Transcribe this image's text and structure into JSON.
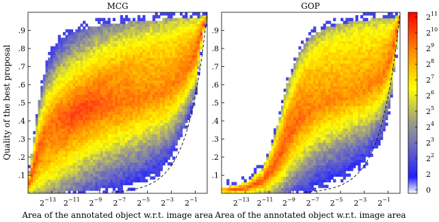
{
  "chart_data": [
    {
      "type": "heatmap",
      "title": "MCG",
      "xlabel": "Area of the annotated object w.r.t. image area",
      "ylabel": "Quality of the best proposal",
      "xscale": "log2",
      "xlim_log2": [
        -15,
        0
      ],
      "ylim": [
        0,
        1
      ],
      "x_ticks": [
        -13,
        -11,
        -9,
        -7,
        -5,
        -3,
        -1
      ],
      "y_tick_labels": [
        ".1",
        ".2",
        ".3",
        ".4",
        ".5",
        ".6",
        ".7",
        ".8",
        ".9"
      ],
      "y_ticks": [
        0.1,
        0.2,
        0.3,
        0.4,
        0.5,
        0.6,
        0.7,
        0.8,
        0.9
      ],
      "ridge_log2": [
        [
          -15,
          0.04
        ],
        [
          -13,
          0.2
        ],
        [
          -11,
          0.42
        ],
        [
          -9,
          0.6
        ],
        [
          -7,
          0.72
        ],
        [
          -5,
          0.8
        ],
        [
          -3,
          0.86
        ],
        [
          -1,
          0.92
        ],
        [
          0,
          0.96
        ]
      ],
      "lower_edge_log2": [
        [
          -15,
          0.0
        ],
        [
          -11,
          0.01
        ],
        [
          -8,
          0.03
        ],
        [
          -6,
          0.06
        ],
        [
          -4,
          0.13
        ],
        [
          -3,
          0.2
        ],
        [
          -2,
          0.35
        ],
        [
          -1,
          0.55
        ],
        [
          -0.3,
          0.9
        ],
        [
          0,
          0.97
        ]
      ],
      "upper_edge_log2": [
        [
          -15,
          0.07
        ],
        [
          -14.5,
          0.3
        ],
        [
          -14,
          0.55
        ],
        [
          -13.4,
          0.72
        ],
        [
          -12.5,
          0.84
        ],
        [
          -11,
          0.9
        ],
        [
          -9,
          0.93
        ],
        [
          -6,
          0.95
        ],
        [
          0,
          0.98
        ]
      ],
      "dashed_bound": true
    },
    {
      "type": "heatmap",
      "title": "GOP",
      "xlabel": "Area of the annotated object w.r.t. image area",
      "xscale": "log2",
      "xlim_log2": [
        -15,
        0
      ],
      "ylim": [
        0,
        1
      ],
      "x_ticks": [
        -13,
        -11,
        -9,
        -7,
        -5,
        -3,
        -1
      ],
      "y_tick_labels": [
        ".1",
        ".2",
        ".3",
        ".4",
        ".5",
        ".6",
        ".7",
        ".8",
        ".9"
      ],
      "y_ticks": [
        0.1,
        0.2,
        0.3,
        0.4,
        0.5,
        0.6,
        0.7,
        0.8,
        0.9
      ],
      "ridge_log2": [
        [
          -15,
          0.02
        ],
        [
          -13,
          0.06
        ],
        [
          -11,
          0.18
        ],
        [
          -10,
          0.32
        ],
        [
          -9,
          0.5
        ],
        [
          -8,
          0.66
        ],
        [
          -7,
          0.76
        ],
        [
          -5,
          0.84
        ],
        [
          -3,
          0.88
        ],
        [
          -1,
          0.92
        ],
        [
          0,
          0.95
        ]
      ],
      "lower_edge_log2": [
        [
          -15,
          0.0
        ],
        [
          -10,
          0.0
        ],
        [
          -8,
          0.02
        ],
        [
          -7,
          0.05
        ],
        [
          -5,
          0.1
        ],
        [
          -3,
          0.18
        ],
        [
          -1.6,
          0.3
        ],
        [
          -0.8,
          0.5
        ],
        [
          -0.3,
          0.8
        ],
        [
          0,
          0.97
        ]
      ],
      "upper_edge_log2": [
        [
          -15,
          0.03
        ],
        [
          -13,
          0.06
        ],
        [
          -11.5,
          0.14
        ],
        [
          -10.7,
          0.28
        ],
        [
          -10,
          0.45
        ],
        [
          -9.5,
          0.6
        ],
        [
          -8.5,
          0.78
        ],
        [
          -7.5,
          0.87
        ],
        [
          -6,
          0.92
        ],
        [
          -4,
          0.95
        ],
        [
          0,
          0.98
        ]
      ],
      "dashed_bound": true
    }
  ],
  "colorbar": {
    "tick_exponents": [
      11,
      10,
      9,
      8,
      7,
      6,
      5,
      4,
      3,
      2
    ],
    "tick_base": "2",
    "extra_ticks": [
      "2",
      "0"
    ],
    "colors": [
      "#ffffff",
      "#2020ff",
      "#8080b0",
      "#b0b070",
      "#ffff00",
      "#ffa000",
      "#ff0000"
    ]
  }
}
